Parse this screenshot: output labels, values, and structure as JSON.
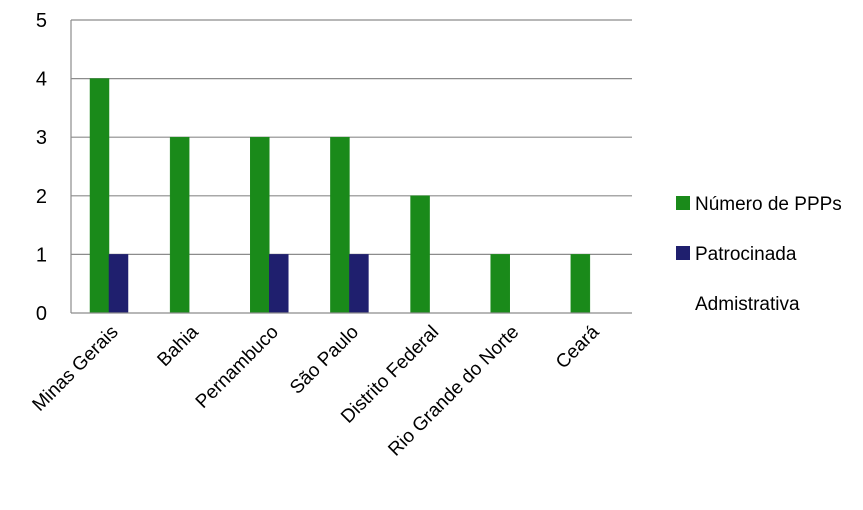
{
  "chart_data": {
    "type": "bar",
    "categories": [
      "Minas Gerais",
      "Bahia",
      "Pernambuco",
      "São Paulo",
      "Distrito Federal",
      "Rio Grande do Norte",
      "Ceará"
    ],
    "series": [
      {
        "name": "Número de PPPs",
        "color": "#1a8a1a",
        "values": [
          4,
          3,
          3,
          3,
          2,
          1,
          1
        ]
      },
      {
        "name": "Patrocinada",
        "color": "#1f1f6e",
        "values": [
          1,
          0,
          1,
          1,
          0,
          0,
          0
        ]
      },
      {
        "name": "Admistrativa",
        "color": "#ffffff",
        "values": [
          0,
          0,
          0,
          0,
          0,
          0,
          0
        ]
      }
    ],
    "y_ticks": [
      "0",
      "1",
      "2",
      "3",
      "4",
      "5"
    ],
    "ylim": [
      0,
      5
    ],
    "grid": true,
    "legend_position": "right"
  }
}
